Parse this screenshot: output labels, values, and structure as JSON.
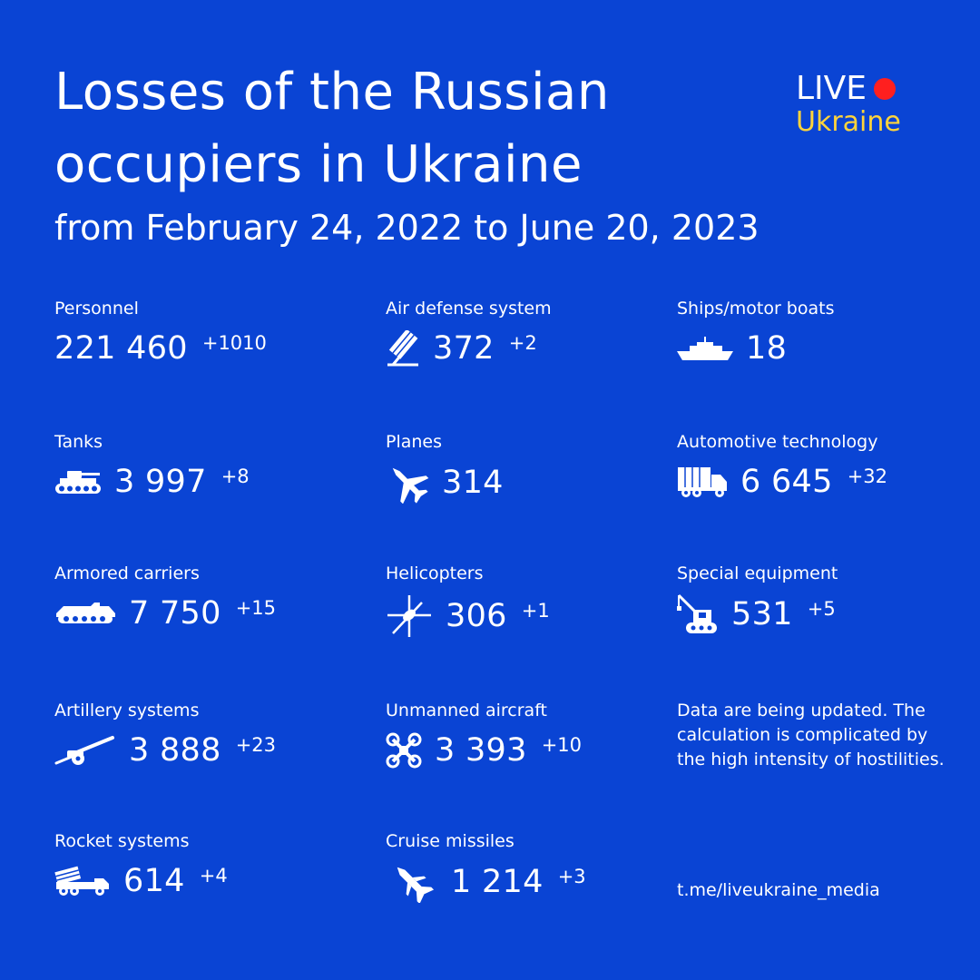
{
  "header": {
    "title": "Losses of the Russian occupiers in Ukraine",
    "subtitle": "from February 24, 2022 to June 20, 2023"
  },
  "logo": {
    "line1": "LIVE",
    "line2": "Ukraine",
    "dot_color": "#ff1f1f",
    "line2_color": "#ffd43b"
  },
  "colors": {
    "background": "#0a44d4",
    "text": "#ffffff"
  },
  "stats": {
    "personnel": {
      "label": "Personnel",
      "value": "221 460",
      "delta": "+1010"
    },
    "air_defense": {
      "label": "Air defense system",
      "value": "372",
      "delta": "+2",
      "icon": "air-defense-icon"
    },
    "ships": {
      "label": "Ships/motor boats",
      "value": "18",
      "icon": "ship-icon"
    },
    "tanks": {
      "label": "Tanks",
      "value": "3 997",
      "delta": "+8",
      "icon": "tank-icon"
    },
    "planes": {
      "label": "Planes",
      "value": "314",
      "icon": "plane-icon"
    },
    "automotive": {
      "label": "Automotive technology",
      "value": "6 645",
      "delta": "+32",
      "icon": "truck-icon"
    },
    "armored": {
      "label": "Armored carriers",
      "value": "7 750",
      "delta": "+15",
      "icon": "armored-carrier-icon"
    },
    "helicopters": {
      "label": "Helicopters",
      "value": "306",
      "delta": "+1",
      "icon": "helicopter-icon"
    },
    "special": {
      "label": "Special equipment",
      "value": "531",
      "delta": "+5",
      "icon": "crane-icon"
    },
    "artillery": {
      "label": "Artillery systems",
      "value": "3 888",
      "delta": "+23",
      "icon": "artillery-icon"
    },
    "uav": {
      "label": "Unmanned aircraft",
      "value": "3 393",
      "delta": "+10",
      "icon": "drone-icon"
    },
    "rocket": {
      "label": "Rocket systems",
      "value": "614",
      "delta": "+4",
      "icon": "rocket-launcher-icon"
    },
    "cruise": {
      "label": "Cruise missiles",
      "value": "1 214",
      "delta": "+3",
      "icon": "missile-icon"
    }
  },
  "note": "Data are being updated. The calculation is complicated by the high intensity of hostilities.",
  "source": "t.me/liveukraine_media"
}
